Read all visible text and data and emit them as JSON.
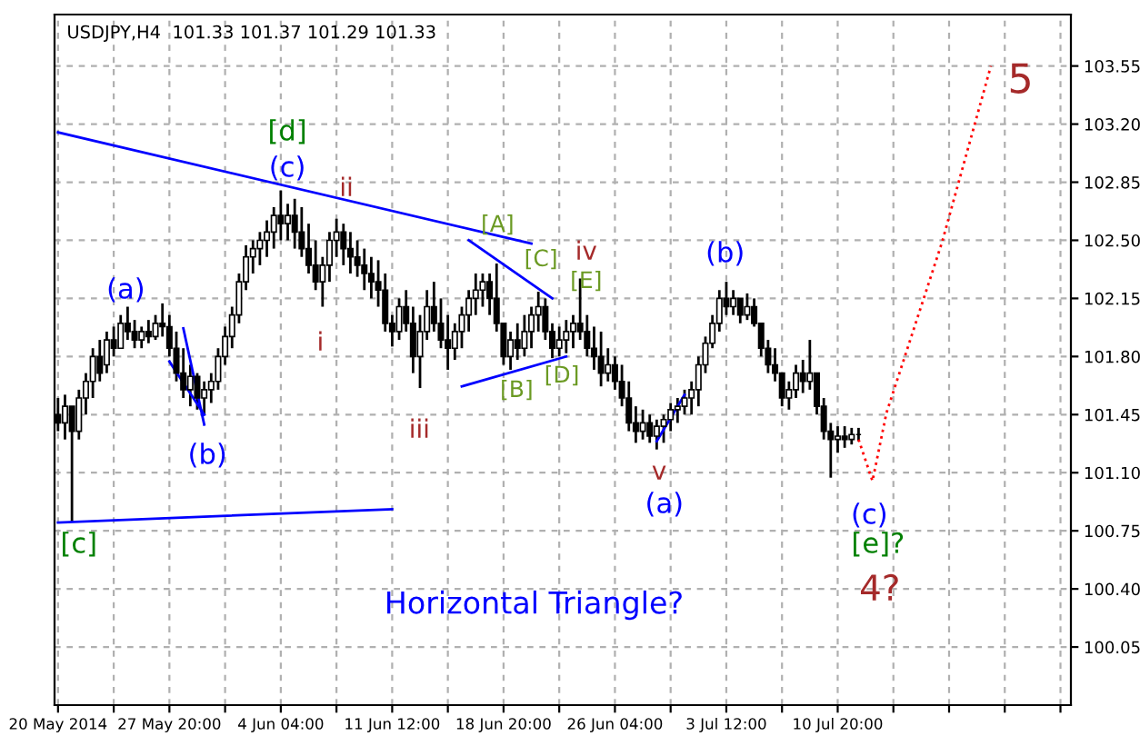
{
  "chart_data": {
    "type": "candlestick",
    "title": "USDJPY,H4  101.33 101.37 101.29 101.33",
    "categories": [
      "20 May 2014",
      null,
      null,
      null,
      null,
      null,
      null,
      null,
      null,
      null,
      null,
      null,
      null,
      null,
      null,
      null,
      "27 May 20:00",
      null,
      null,
      null,
      null,
      null,
      null,
      null,
      null,
      null,
      null,
      null,
      null,
      null,
      null,
      null,
      "4 Jun 04:00",
      null,
      null,
      null,
      null,
      null,
      null,
      null,
      null,
      null,
      null,
      null,
      null,
      null,
      null,
      null,
      "11 Jun 12:00",
      null,
      null,
      null,
      null,
      null,
      null,
      null,
      null,
      null,
      null,
      null,
      null,
      null,
      null,
      null,
      "18 Jun 20:00",
      null,
      null,
      null,
      null,
      null,
      null,
      null,
      null,
      null,
      null,
      null,
      null,
      null,
      null,
      null,
      "26 Jun 04:00",
      null,
      null,
      null,
      null,
      null,
      null,
      null,
      null,
      null,
      null,
      null,
      null,
      null,
      null,
      null,
      "3 Jul 12:00",
      null,
      null,
      null,
      null,
      null,
      null,
      null,
      null,
      null,
      null,
      null,
      null,
      null,
      null,
      null,
      "10 Jul 20:00",
      null,
      null,
      null,
      null,
      null,
      null,
      null,
      null,
      null,
      null,
      null,
      null,
      null,
      null,
      null,
      null,
      null,
      null,
      null,
      null,
      null,
      null,
      null,
      null,
      null,
      null,
      null,
      null,
      null,
      null,
      null,
      null,
      null
    ],
    "ohlc": [
      [
        101.45,
        101.55,
        101.35,
        101.4
      ],
      [
        101.4,
        101.57,
        101.3,
        101.5
      ],
      [
        101.5,
        101.5,
        100.8,
        101.35
      ],
      [
        101.35,
        101.6,
        101.3,
        101.55
      ],
      [
        101.55,
        101.7,
        101.45,
        101.65
      ],
      [
        101.65,
        101.85,
        101.55,
        101.8
      ],
      [
        101.8,
        101.9,
        101.65,
        101.7
      ],
      [
        101.75,
        101.95,
        101.7,
        101.9
      ],
      [
        101.9,
        101.98,
        101.8,
        101.85
      ],
      [
        101.85,
        102.05,
        101.85,
        102.0
      ],
      [
        102.0,
        102.1,
        101.9,
        101.95
      ],
      [
        101.95,
        102.02,
        101.85,
        101.9
      ],
      [
        101.9,
        101.98,
        101.85,
        101.95
      ],
      [
        101.95,
        102.02,
        101.88,
        101.92
      ],
      [
        101.92,
        102.05,
        101.9,
        102.0
      ],
      [
        102.0,
        102.12,
        101.92,
        101.98
      ],
      [
        101.98,
        102.05,
        101.8,
        101.85
      ],
      [
        101.85,
        101.95,
        101.65,
        101.7
      ],
      [
        101.7,
        101.85,
        101.55,
        101.6
      ],
      [
        101.6,
        101.75,
        101.5,
        101.68
      ],
      [
        101.68,
        101.7,
        101.48,
        101.55
      ],
      [
        101.55,
        101.65,
        101.45,
        101.6
      ],
      [
        101.6,
        101.7,
        101.52,
        101.65
      ],
      [
        101.65,
        101.85,
        101.6,
        101.8
      ],
      [
        101.8,
        101.98,
        101.75,
        101.92
      ],
      [
        101.92,
        102.1,
        101.85,
        102.05
      ],
      [
        102.05,
        102.3,
        102.0,
        102.25
      ],
      [
        102.25,
        102.47,
        102.2,
        102.4
      ],
      [
        102.4,
        102.5,
        102.3,
        102.45
      ],
      [
        102.45,
        102.55,
        102.35,
        102.5
      ],
      [
        102.5,
        102.62,
        102.4,
        102.55
      ],
      [
        102.55,
        102.7,
        102.45,
        102.65
      ],
      [
        102.65,
        102.8,
        102.5,
        102.6
      ],
      [
        102.6,
        102.72,
        102.5,
        102.65
      ],
      [
        102.65,
        102.75,
        102.45,
        102.55
      ],
      [
        102.55,
        102.7,
        102.4,
        102.45
      ],
      [
        102.45,
        102.6,
        102.3,
        102.35
      ],
      [
        102.35,
        102.5,
        102.2,
        102.25
      ],
      [
        102.25,
        102.4,
        102.1,
        102.35
      ],
      [
        102.35,
        102.55,
        102.25,
        102.5
      ],
      [
        102.5,
        102.63,
        102.4,
        102.55
      ],
      [
        102.55,
        102.6,
        102.35,
        102.45
      ],
      [
        102.45,
        102.55,
        102.3,
        102.4
      ],
      [
        102.4,
        102.5,
        102.28,
        102.35
      ],
      [
        102.35,
        102.45,
        102.2,
        102.3
      ],
      [
        102.3,
        102.4,
        102.15,
        102.25
      ],
      [
        102.25,
        102.38,
        102.1,
        102.2
      ],
      [
        102.2,
        102.3,
        101.95,
        102.0
      ],
      [
        102.0,
        102.05,
        101.86,
        101.95
      ],
      [
        101.95,
        102.15,
        101.9,
        102.1
      ],
      [
        102.1,
        102.2,
        101.95,
        102.0
      ],
      [
        102.0,
        102.1,
        101.7,
        101.8
      ],
      [
        101.8,
        102.05,
        101.61,
        101.95
      ],
      [
        101.95,
        102.2,
        101.9,
        102.1
      ],
      [
        102.1,
        102.25,
        101.95,
        102.0
      ],
      [
        102.0,
        102.15,
        101.85,
        101.9
      ],
      [
        101.9,
        102.05,
        101.72,
        101.85
      ],
      [
        101.85,
        102.0,
        101.78,
        101.95
      ],
      [
        101.95,
        102.1,
        101.85,
        102.05
      ],
      [
        102.05,
        102.2,
        101.95,
        102.15
      ],
      [
        102.15,
        102.3,
        102.05,
        102.2
      ],
      [
        102.2,
        102.3,
        102.1,
        102.25
      ],
      [
        102.25,
        102.3,
        102.05,
        102.15
      ],
      [
        102.15,
        102.36,
        101.95,
        102.0
      ],
      [
        102.0,
        102.0,
        101.75,
        101.8
      ],
      [
        101.8,
        101.95,
        101.72,
        101.9
      ],
      [
        101.9,
        102.0,
        101.78,
        101.85
      ],
      [
        101.85,
        102.05,
        101.8,
        101.95
      ],
      [
        101.95,
        102.1,
        101.85,
        102.05
      ],
      [
        102.05,
        102.19,
        101.95,
        102.1
      ],
      [
        102.1,
        102.15,
        101.9,
        101.95
      ],
      [
        101.95,
        102.0,
        101.79,
        101.85
      ],
      [
        101.85,
        101.98,
        101.8,
        101.9
      ],
      [
        101.9,
        102.02,
        101.82,
        101.95
      ],
      [
        101.95,
        102.05,
        101.85,
        102.0
      ],
      [
        102.0,
        102.27,
        101.9,
        101.95
      ],
      [
        101.95,
        102.05,
        101.8,
        101.85
      ],
      [
        101.85,
        101.98,
        101.72,
        101.8
      ],
      [
        101.8,
        101.95,
        101.62,
        101.7
      ],
      [
        101.7,
        101.85,
        101.65,
        101.75
      ],
      [
        101.75,
        101.8,
        101.6,
        101.65
      ],
      [
        101.65,
        101.75,
        101.5,
        101.55
      ],
      [
        101.55,
        101.65,
        101.35,
        101.4
      ],
      [
        101.4,
        101.5,
        101.28,
        101.35
      ],
      [
        101.35,
        101.48,
        101.3,
        101.4
      ],
      [
        101.4,
        101.45,
        101.28,
        101.32
      ],
      [
        101.32,
        101.42,
        101.24,
        101.38
      ],
      [
        101.38,
        101.45,
        101.28,
        101.42
      ],
      [
        101.42,
        101.52,
        101.35,
        101.48
      ],
      [
        101.48,
        101.55,
        101.4,
        101.5
      ],
      [
        101.5,
        101.6,
        101.45,
        101.55
      ],
      [
        101.55,
        101.65,
        101.45,
        101.6
      ],
      [
        101.6,
        101.8,
        101.5,
        101.75
      ],
      [
        101.75,
        101.92,
        101.7,
        101.88
      ],
      [
        101.88,
        102.05,
        101.85,
        102.0
      ],
      [
        102.0,
        102.2,
        101.95,
        102.15
      ],
      [
        102.15,
        102.25,
        102.05,
        102.1
      ],
      [
        102.1,
        102.2,
        102.05,
        102.15
      ],
      [
        102.15,
        102.15,
        102.0,
        102.05
      ],
      [
        102.05,
        102.18,
        102.02,
        102.1
      ],
      [
        102.1,
        102.15,
        101.98,
        102.0
      ],
      [
        102.0,
        102.0,
        101.8,
        101.85
      ],
      [
        101.85,
        101.9,
        101.7,
        101.75
      ],
      [
        101.75,
        101.85,
        101.65,
        101.7
      ],
      [
        101.7,
        101.7,
        101.5,
        101.55
      ],
      [
        101.55,
        101.65,
        101.48,
        101.6
      ],
      [
        101.6,
        101.75,
        101.55,
        101.7
      ],
      [
        101.7,
        101.78,
        101.58,
        101.65
      ],
      [
        101.65,
        101.9,
        101.6,
        101.7
      ],
      [
        101.7,
        101.7,
        101.45,
        101.5
      ],
      [
        101.5,
        101.55,
        101.3,
        101.35
      ],
      [
        101.35,
        101.4,
        101.07,
        101.3
      ],
      [
        101.3,
        101.38,
        101.22,
        101.32
      ],
      [
        101.32,
        101.38,
        101.25,
        101.3
      ],
      [
        101.3,
        101.37,
        101.27,
        101.33
      ],
      [
        101.33,
        101.37,
        101.29,
        101.33
      ],
      null,
      null,
      null,
      null,
      null,
      null,
      null,
      null,
      null,
      null,
      null,
      null,
      null,
      null,
      null,
      null,
      null,
      null,
      null,
      null,
      null,
      null,
      null,
      null,
      null,
      null,
      null,
      null,
      null,
      null
    ],
    "color": "#000000",
    "series": [
      {
        "type": "line",
        "color": "#0000ff",
        "values": [
          103.15,
          null,
          null,
          null,
          null,
          null,
          null,
          null,
          null,
          null,
          null,
          null,
          null,
          null,
          null,
          null,
          null,
          null,
          null,
          null,
          null,
          null,
          null,
          null,
          null,
          null,
          null,
          null,
          null,
          null,
          null,
          null,
          null,
          null,
          null,
          null,
          null,
          null,
          null,
          null,
          null,
          null,
          null,
          null,
          null,
          null,
          null,
          null,
          null,
          null,
          null,
          null,
          null,
          null,
          null,
          null,
          null,
          null,
          null,
          null,
          null,
          null,
          null,
          null,
          null,
          null,
          null,
          null,
          102.48,
          null,
          null,
          null,
          null,
          null,
          null,
          null,
          null,
          null,
          null,
          null,
          null,
          null,
          null,
          null,
          null,
          null,
          null,
          null,
          null,
          null,
          null,
          null,
          null,
          null,
          null,
          null,
          null,
          null,
          null,
          null,
          null,
          null,
          null,
          null,
          null,
          null,
          null,
          null,
          null,
          null,
          null,
          null,
          null,
          null,
          null,
          null,
          null,
          null,
          null,
          null,
          null,
          null,
          null,
          null,
          null,
          null,
          null,
          null,
          null,
          null,
          null,
          null,
          null,
          null,
          null,
          null,
          null,
          null,
          null,
          null,
          null,
          null,
          null,
          null,
          null,
          null
        ]
      },
      {
        "type": "line",
        "color": "#0000ff",
        "values": [
          null,
          null,
          null,
          null,
          null,
          null,
          null,
          null,
          null,
          null,
          null,
          null,
          null,
          null,
          null,
          null,
          null,
          null,
          null,
          null,
          null,
          null,
          null,
          null,
          null,
          null,
          null,
          null,
          null,
          null,
          null,
          null,
          null,
          null,
          null,
          null,
          null,
          null,
          null,
          null,
          null,
          null,
          null,
          null,
          null,
          null,
          null,
          null,
          null,
          null,
          null,
          null,
          null,
          null,
          null,
          null,
          null,
          null,
          101.62,
          null,
          null,
          null,
          null,
          null,
          null,
          null,
          null,
          null,
          null,
          null,
          null,
          null,
          null,
          101.8,
          null,
          null,
          null,
          null,
          null,
          null,
          null,
          null,
          null,
          null,
          null,
          null,
          null,
          null,
          null,
          null,
          null,
          null,
          null,
          null,
          null,
          null,
          null,
          null,
          null,
          null,
          null,
          null,
          null,
          null,
          null,
          null,
          null,
          null,
          null,
          null,
          null,
          null,
          null,
          null,
          null,
          null,
          null,
          null,
          null,
          null,
          null,
          null,
          null,
          null,
          null,
          null,
          null,
          null,
          null,
          null,
          null,
          null,
          null,
          null,
          null,
          null,
          null,
          null,
          null,
          null,
          null,
          null,
          null,
          null,
          null,
          null
        ]
      },
      {
        "type": "line",
        "color": "#0000ff",
        "values": [
          null,
          null,
          null,
          null,
          null,
          null,
          null,
          null,
          null,
          null,
          null,
          null,
          null,
          null,
          null,
          null,
          null,
          null,
          null,
          null,
          null,
          null,
          null,
          null,
          null,
          null,
          null,
          null,
          null,
          null,
          null,
          null,
          null,
          null,
          null,
          null,
          null,
          null,
          null,
          null,
          null,
          null,
          null,
          null,
          null,
          null,
          null,
          null,
          null,
          null,
          null,
          null,
          null,
          null,
          null,
          null,
          null,
          null,
          null,
          102.5,
          null,
          null,
          null,
          null,
          null,
          null,
          null,
          null,
          null,
          null,
          null,
          102.15,
          null,
          null,
          null,
          null,
          null,
          null,
          null,
          null,
          null,
          null,
          null,
          null,
          null,
          null,
          null,
          null,
          null,
          null,
          null,
          null,
          null,
          null,
          null,
          null,
          null,
          null,
          null,
          null,
          null,
          null,
          null,
          null,
          null,
          null,
          null,
          null,
          null,
          null,
          null,
          null,
          null,
          null,
          null,
          null,
          null,
          null,
          null,
          null,
          null,
          null,
          null,
          null,
          null,
          null,
          null,
          null,
          null,
          null,
          null,
          null,
          null,
          null,
          null,
          null,
          null,
          null,
          null,
          null,
          null,
          null,
          null,
          null,
          null,
          null
        ]
      },
      {
        "type": "line",
        "color": "#0000ff",
        "values": [
          100.8,
          null,
          null,
          null,
          null,
          null,
          null,
          null,
          null,
          null,
          null,
          null,
          null,
          null,
          null,
          null,
          null,
          null,
          null,
          null,
          null,
          null,
          null,
          null,
          null,
          null,
          null,
          null,
          null,
          null,
          null,
          null,
          null,
          null,
          null,
          null,
          null,
          null,
          null,
          null,
          null,
          null,
          null,
          null,
          null,
          null,
          null,
          null,
          100.88,
          null,
          null,
          null,
          null,
          null,
          null,
          null,
          null,
          null,
          null,
          null,
          null,
          null,
          null,
          null,
          null,
          null,
          null,
          null,
          null,
          null,
          null,
          null,
          null,
          null,
          null,
          null,
          null,
          null,
          null,
          null,
          null,
          null,
          null,
          null,
          null,
          null,
          null,
          null,
          null,
          null,
          null,
          null,
          null,
          null,
          null,
          null,
          null,
          null,
          null,
          null,
          null,
          null,
          null,
          null,
          null,
          null,
          null,
          null,
          null,
          null,
          null,
          null,
          null,
          null,
          null,
          null,
          null,
          null,
          null,
          null,
          null,
          null,
          null,
          null,
          null,
          null,
          null,
          null,
          null,
          null,
          null,
          null,
          null,
          null,
          null,
          null,
          null,
          null,
          null,
          null,
          null,
          null,
          null,
          null,
          null,
          null
        ]
      },
      {
        "type": "line",
        "color": "#0000ff",
        "values": [
          null,
          null,
          null,
          null,
          null,
          null,
          null,
          null,
          null,
          null,
          null,
          null,
          null,
          null,
          null,
          null,
          null,
          null,
          101.97,
          null,
          null,
          101.39,
          null,
          null,
          null,
          null,
          null,
          null,
          null,
          null,
          null,
          null,
          null,
          null,
          null,
          null,
          null,
          null,
          null,
          null,
          null,
          null,
          null,
          null,
          null,
          null,
          null,
          null,
          null,
          null,
          null,
          null,
          null,
          null,
          null,
          null,
          null,
          null,
          null,
          null,
          null,
          null,
          null,
          null,
          null,
          null,
          null,
          null,
          null,
          null,
          null,
          null,
          null,
          null,
          null,
          null,
          null,
          null,
          null,
          null,
          null,
          null,
          null,
          null,
          null,
          null,
          null,
          null,
          null,
          null,
          null,
          null,
          null,
          null,
          null,
          null,
          null,
          null,
          null,
          null,
          null,
          null,
          null,
          null,
          null,
          null,
          null,
          null,
          null,
          null,
          null,
          null,
          null,
          null,
          null,
          null,
          null,
          null,
          null,
          null,
          null,
          null,
          null,
          null,
          null,
          null,
          null,
          null,
          null,
          null,
          null,
          null,
          null,
          null,
          null,
          null,
          null,
          null,
          null,
          null,
          null,
          null,
          null,
          null,
          null,
          null
        ]
      },
      {
        "type": "line",
        "color": "#0000ff",
        "values": [
          null,
          null,
          null,
          null,
          null,
          null,
          null,
          null,
          null,
          null,
          null,
          null,
          null,
          null,
          null,
          null,
          101.77,
          null,
          null,
          null,
          null,
          101.45,
          null,
          null,
          null,
          null,
          null,
          null,
          null,
          null,
          null,
          null,
          null,
          null,
          null,
          null,
          null,
          null,
          null,
          null,
          null,
          null,
          null,
          null,
          null,
          null,
          null,
          null,
          null,
          null,
          null,
          null,
          null,
          null,
          null,
          null,
          null,
          null,
          null,
          null,
          null,
          null,
          null,
          null,
          null,
          null,
          null,
          null,
          null,
          null,
          null,
          null,
          null,
          null,
          null,
          null,
          null,
          null,
          null,
          null,
          null,
          null,
          null,
          null,
          null,
          null,
          null,
          null,
          null,
          null,
          null,
          null,
          null,
          null,
          null,
          null,
          null,
          null,
          null,
          null,
          null,
          null,
          null,
          null,
          null,
          null,
          null,
          null,
          null,
          null,
          null,
          null,
          null,
          null,
          null,
          null,
          null,
          null,
          null,
          null,
          null,
          null,
          null,
          null,
          null,
          null,
          null,
          null,
          null,
          null,
          null,
          null,
          null,
          null,
          null,
          null,
          null,
          null,
          null,
          null,
          null,
          null,
          null,
          null,
          null,
          null
        ]
      },
      {
        "type": "line",
        "color": "#0000ff",
        "values": [
          null,
          null,
          null,
          null,
          null,
          null,
          null,
          null,
          null,
          null,
          null,
          null,
          null,
          null,
          null,
          null,
          null,
          null,
          null,
          null,
          null,
          null,
          null,
          null,
          null,
          null,
          null,
          null,
          null,
          null,
          null,
          null,
          null,
          null,
          null,
          null,
          null,
          null,
          null,
          null,
          null,
          null,
          null,
          null,
          null,
          null,
          null,
          null,
          null,
          null,
          null,
          null,
          null,
          null,
          null,
          null,
          null,
          null,
          null,
          null,
          null,
          null,
          null,
          null,
          null,
          null,
          null,
          null,
          null,
          null,
          null,
          null,
          null,
          null,
          null,
          null,
          null,
          null,
          null,
          null,
          null,
          null,
          null,
          null,
          null,
          null,
          101.29,
          null,
          null,
          null,
          101.57,
          null,
          null,
          null,
          null,
          null,
          null,
          null,
          null,
          null,
          null,
          null,
          null,
          null,
          null,
          null,
          null,
          null,
          null,
          null,
          null,
          null,
          null,
          null,
          null,
          null,
          null,
          null,
          null,
          null,
          null,
          null,
          null,
          null,
          null,
          null,
          null,
          null,
          null,
          null,
          null,
          null,
          null,
          null,
          null,
          null,
          null,
          null,
          null,
          null,
          null,
          null,
          null,
          null,
          null,
          null
        ]
      },
      {
        "type": "line",
        "color": "#ff0000",
        "line_style": "dotted",
        "values": [
          null,
          null,
          null,
          null,
          null,
          null,
          null,
          null,
          null,
          null,
          null,
          null,
          null,
          null,
          null,
          null,
          null,
          null,
          null,
          null,
          null,
          null,
          null,
          null,
          null,
          null,
          null,
          null,
          null,
          null,
          null,
          null,
          null,
          null,
          null,
          null,
          null,
          null,
          null,
          null,
          null,
          null,
          null,
          null,
          null,
          null,
          null,
          null,
          null,
          null,
          null,
          null,
          null,
          null,
          null,
          null,
          null,
          null,
          null,
          null,
          null,
          null,
          null,
          null,
          null,
          null,
          null,
          null,
          null,
          null,
          null,
          null,
          null,
          null,
          null,
          null,
          null,
          null,
          null,
          null,
          null,
          null,
          null,
          null,
          null,
          null,
          null,
          null,
          null,
          null,
          null,
          null,
          null,
          null,
          null,
          null,
          null,
          null,
          null,
          null,
          null,
          null,
          null,
          null,
          null,
          null,
          null,
          null,
          null,
          null,
          null,
          null,
          null,
          null,
          null,
          101.3,
          null,
          101.05,
          null,
          101.46,
          null,
          null,
          null,
          null,
          null,
          null,
          null,
          102.49,
          null,
          null,
          null,
          null,
          null,
          null,
          103.55,
          null,
          null,
          null,
          null,
          null,
          null,
          null,
          null,
          null,
          null,
          null
        ]
      }
    ],
    "annotations": [
      "[c]",
      "(a)",
      "(b)",
      "[d]",
      "(c)",
      "ii",
      "i",
      "iii",
      "[A]",
      "[C]",
      "iv",
      "[E]",
      "[B]",
      "[D]",
      "v",
      "(a)",
      "(b)",
      "(c)",
      "[e]?",
      "4?",
      "5",
      "Horizontal Triangle?"
    ],
    "ylim": [
      99.7,
      103.86
    ],
    "yticks": [
      100.05,
      {
        "value": 100.4,
        "label": "100.40"
      },
      100.75,
      {
        "value": 101.1,
        "label": "101.10"
      },
      101.45,
      {
        "value": 101.8,
        "label": "101.80"
      },
      102.15,
      {
        "value": 102.5,
        "label": "102.50"
      },
      102.85,
      {
        "value": 103.2,
        "label": "103.20"
      },
      103.55
    ],
    "grid": true
  }
}
